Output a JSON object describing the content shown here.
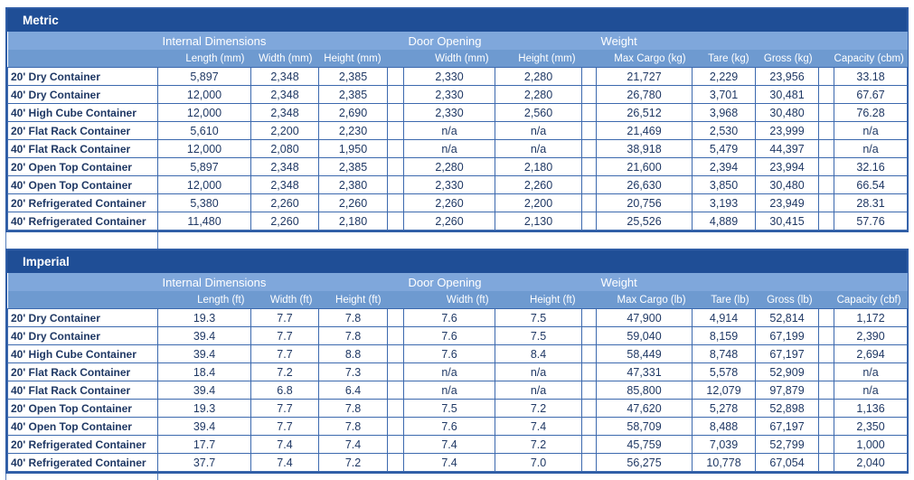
{
  "colors": {
    "title_bar": "#1F4E96",
    "group_header_band": "#7FA7DB",
    "sub_header_band": "#6E9AD0",
    "cell_border": "#3C69AE",
    "outer_border": "#2F5DA6",
    "data_text": "#1F3864",
    "header_text": "#FFFFFF"
  },
  "tables": [
    {
      "title": "Metric",
      "group_headers": {
        "internal": "Internal Dimensions",
        "door": "Door Opening",
        "weight": "Weight"
      },
      "columns": [
        "Length (mm)",
        "Width (mm)",
        "Height (mm)",
        "Width (mm)",
        "Height (mm)",
        "Max Cargo (kg)",
        "Tare (kg)",
        "Gross (kg)",
        "Capacity (cbm)"
      ],
      "rows": [
        {
          "name": "20' Dry Container",
          "values": [
            "5,897",
            "2,348",
            "2,385",
            "2,330",
            "2,280",
            "21,727",
            "2,229",
            "23,956",
            "33.18"
          ]
        },
        {
          "name": "40' Dry Container",
          "values": [
            "12,000",
            "2,348",
            "2,385",
            "2,330",
            "2,280",
            "26,780",
            "3,701",
            "30,481",
            "67.67"
          ]
        },
        {
          "name": "40' High Cube Container",
          "values": [
            "12,000",
            "2,348",
            "2,690",
            "2,330",
            "2,560",
            "26,512",
            "3,968",
            "30,480",
            "76.28"
          ]
        },
        {
          "name": "20' Flat Rack Container",
          "values": [
            "5,610",
            "2,200",
            "2,230",
            "n/a",
            "n/a",
            "21,469",
            "2,530",
            "23,999",
            "n/a"
          ]
        },
        {
          "name": "40' Flat Rack Container",
          "values": [
            "12,000",
            "2,080",
            "1,950",
            "n/a",
            "n/a",
            "38,918",
            "5,479",
            "44,397",
            "n/a"
          ]
        },
        {
          "name": "20' Open Top Container",
          "values": [
            "5,897",
            "2,348",
            "2,385",
            "2,280",
            "2,180",
            "21,600",
            "2,394",
            "23,994",
            "32.16"
          ]
        },
        {
          "name": "40' Open Top Container",
          "values": [
            "12,000",
            "2,348",
            "2,380",
            "2,330",
            "2,260",
            "26,630",
            "3,850",
            "30,480",
            "66.54"
          ]
        },
        {
          "name": "20' Refrigerated Container",
          "values": [
            "5,380",
            "2,260",
            "2,260",
            "2,260",
            "2,200",
            "20,756",
            "3,193",
            "23,949",
            "28.31"
          ]
        },
        {
          "name": "40' Refrigerated Container",
          "values": [
            "11,480",
            "2,260",
            "2,180",
            "2,260",
            "2,130",
            "25,526",
            "4,889",
            "30,415",
            "57.76"
          ]
        }
      ]
    },
    {
      "title": "Imperial",
      "group_headers": {
        "internal": "Internal Dimensions",
        "door": "Door Opening",
        "weight": "Weight"
      },
      "columns": [
        "Length (ft)",
        "Width (ft)",
        "Height (ft)",
        "Width (ft)",
        "Height (ft)",
        "Max Cargo (lb)",
        "Tare (lb)",
        "Gross (lb)",
        "Capacity (cbf)"
      ],
      "rows": [
        {
          "name": "20' Dry Container",
          "values": [
            "19.3",
            "7.7",
            "7.8",
            "7.6",
            "7.5",
            "47,900",
            "4,914",
            "52,814",
            "1,172"
          ]
        },
        {
          "name": "40' Dry Container",
          "values": [
            "39.4",
            "7.7",
            "7.8",
            "7.6",
            "7.5",
            "59,040",
            "8,159",
            "67,199",
            "2,390"
          ]
        },
        {
          "name": "40' High Cube Container",
          "values": [
            "39.4",
            "7.7",
            "8.8",
            "7.6",
            "8.4",
            "58,449",
            "8,748",
            "67,197",
            "2,694"
          ]
        },
        {
          "name": "20' Flat Rack Container",
          "values": [
            "18.4",
            "7.2",
            "7.3",
            "n/a",
            "n/a",
            "47,331",
            "5,578",
            "52,909",
            "n/a"
          ]
        },
        {
          "name": "40' Flat Rack Container",
          "values": [
            "39.4",
            "6.8",
            "6.4",
            "n/a",
            "n/a",
            "85,800",
            "12,079",
            "97,879",
            "n/a"
          ]
        },
        {
          "name": "20' Open Top Container",
          "values": [
            "19.3",
            "7.7",
            "7.8",
            "7.5",
            "7.2",
            "47,620",
            "5,278",
            "52,898",
            "1,136"
          ]
        },
        {
          "name": "40' Open Top Container",
          "values": [
            "39.4",
            "7.7",
            "7.8",
            "7.6",
            "7.4",
            "58,709",
            "8,488",
            "67,197",
            "2,350"
          ]
        },
        {
          "name": "20' Refrigerated Container",
          "values": [
            "17.7",
            "7.4",
            "7.4",
            "7.4",
            "7.2",
            "45,759",
            "7,039",
            "52,799",
            "1,000"
          ]
        },
        {
          "name": "40' Refrigerated Container",
          "values": [
            "37.7",
            "7.4",
            "7.2",
            "7.4",
            "7.0",
            "56,275",
            "10,778",
            "67,054",
            "2,040"
          ]
        }
      ]
    }
  ]
}
